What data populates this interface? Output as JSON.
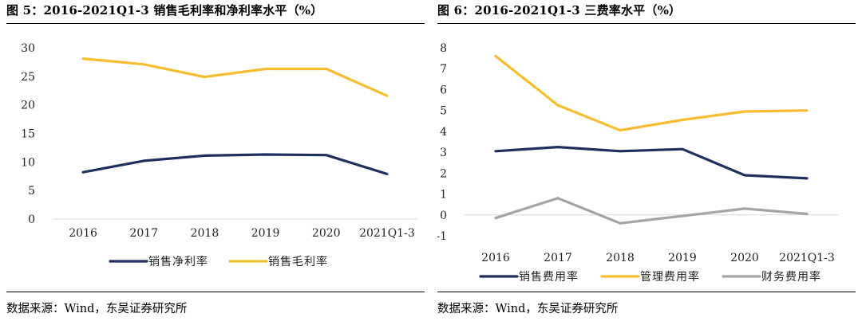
{
  "panels": [
    {
      "title": "图 5：2016-2021Q1-3 销售毛利率和净利率水平（%）",
      "source": "数据来源：Wind，东吴证券研究所",
      "chart_data": {
        "type": "line",
        "categories": [
          "2016",
          "2017",
          "2018",
          "2019",
          "2020",
          "2021Q1-3"
        ],
        "ylim": [
          0,
          30
        ],
        "yticks": [
          0,
          5,
          10,
          15,
          20,
          25,
          30
        ],
        "grid": false,
        "legend_position": "bottom",
        "series": [
          {
            "name": "销售净利率",
            "color": "#1f2f5e",
            "values": [
              8.2,
              10.2,
              11.1,
              11.3,
              11.2,
              7.9
            ]
          },
          {
            "name": "销售毛利率",
            "color": "#f5bd2f",
            "values": [
              28.1,
              27.1,
              24.9,
              26.3,
              26.3,
              21.6
            ]
          }
        ]
      }
    },
    {
      "title": "图 6：2016-2021Q1-3 三费率水平（%）",
      "source": "数据来源：Wind，东吴证券研究所",
      "chart_data": {
        "type": "line",
        "categories": [
          "2016",
          "2017",
          "2018",
          "2019",
          "2020",
          "2021Q1-3"
        ],
        "ylim": [
          -1,
          8
        ],
        "yticks": [
          -1,
          0,
          1,
          2,
          3,
          4,
          5,
          6,
          7,
          8
        ],
        "grid": false,
        "legend_position": "bottom",
        "series": [
          {
            "name": "销售费用率",
            "color": "#1f2f5e",
            "values": [
              3.05,
              3.25,
              3.05,
              3.15,
              1.9,
              1.75
            ]
          },
          {
            "name": "管理费用率",
            "color": "#f5bd2f",
            "values": [
              7.6,
              5.25,
              4.05,
              4.55,
              4.95,
              5.0
            ]
          },
          {
            "name": "财务费用率",
            "color": "#a5a5a5",
            "values": [
              -0.15,
              0.8,
              -0.4,
              -0.05,
              0.3,
              0.05
            ]
          }
        ]
      }
    }
  ]
}
